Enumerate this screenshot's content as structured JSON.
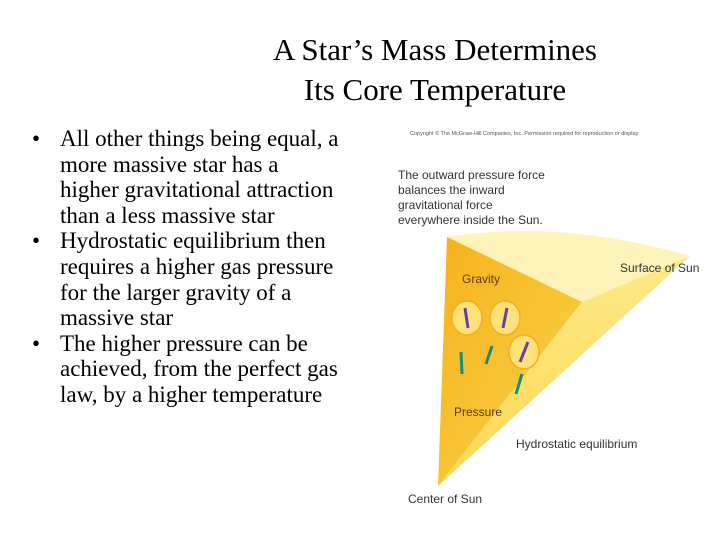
{
  "title": [
    "A Star’s Mass Determines",
    "Its Core Temperature"
  ],
  "bullets": [
    [
      "All other things being equal, a",
      "more massive star has a",
      "higher gravitational attraction",
      "than a less massive star"
    ],
    [
      "Hydrostatic equilibrium then",
      "requires a higher gas pressure",
      "for the larger gravity of a",
      "massive star"
    ],
    [
      "The higher pressure can be",
      "achieved, from the perfect gas",
      "law, by a higher temperature"
    ]
  ],
  "figure": {
    "copyright": "Copyright © The McGraw-Hill Companies, Inc. Permission required for reproduction or display",
    "caption": [
      "The outward pressure force",
      "balances the inward",
      "gravitational force",
      "everywhere inside the Sun."
    ],
    "labels": {
      "gravity": "Gravity",
      "surface": "Surface of Sun",
      "pressure": "Pressure",
      "equilibrium": "Hydrostatic equilibrium",
      "center": "Center of Sun"
    }
  }
}
